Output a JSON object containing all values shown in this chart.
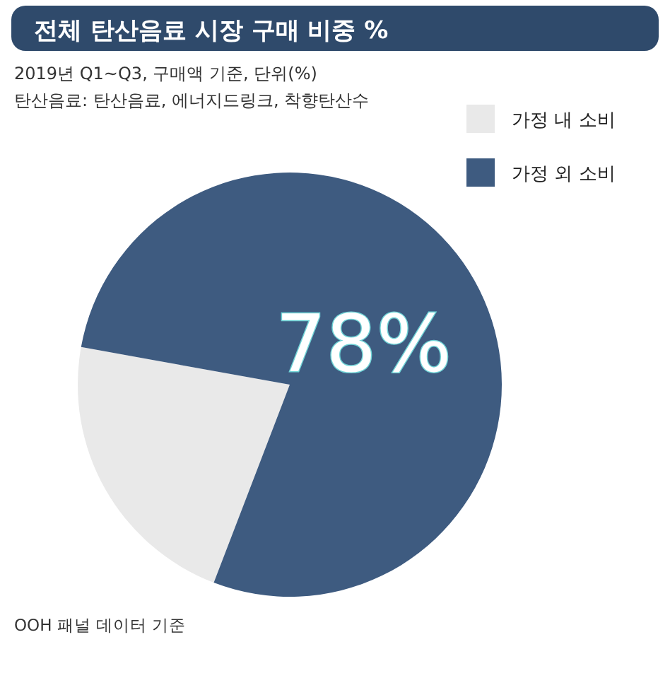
{
  "chart_data": {
    "type": "pie",
    "title": "전체 탄산음료 시장 구매 비중 %",
    "subtitle": "2019년 Q1~Q3, 구매액 기준, 단위(%)",
    "categories": [
      "가정 내 소비",
      "가정 외 소비"
    ],
    "values": [
      22,
      78
    ],
    "colors": [
      "#e9e9e9",
      "#3e5b80"
    ],
    "value_labels": [
      null,
      "78%"
    ],
    "legend": "top right",
    "annotations": [
      "탄산음료: 탄산음료, 에너지드링크, 착향탄산수",
      "OOH 패널 데이터 기준"
    ]
  }
}
